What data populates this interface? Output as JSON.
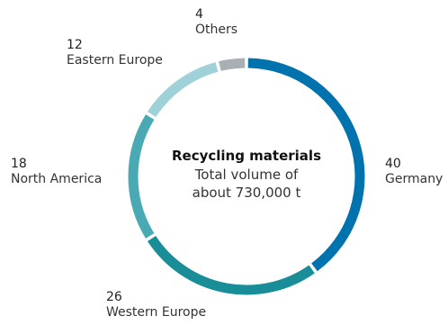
{
  "chart_data": {
    "type": "pie",
    "donut": true,
    "unit": "%",
    "center_title": "Recycling materials",
    "center_subtitle_line1": "Total volume of",
    "center_subtitle_line2": "about 730,000 t",
    "slices": [
      {
        "label": "Germany",
        "value": 40,
        "color": "#0072ae"
      },
      {
        "label": "Western Europe",
        "value": 26,
        "color": "#1a8e98"
      },
      {
        "label": "North America",
        "value": 18,
        "color": "#4aaab4"
      },
      {
        "label": "Eastern Europe",
        "value": 12,
        "color": "#9fd2d8"
      },
      {
        "label": "Others",
        "value": 4,
        "color": "#a8b0b5"
      }
    ]
  }
}
